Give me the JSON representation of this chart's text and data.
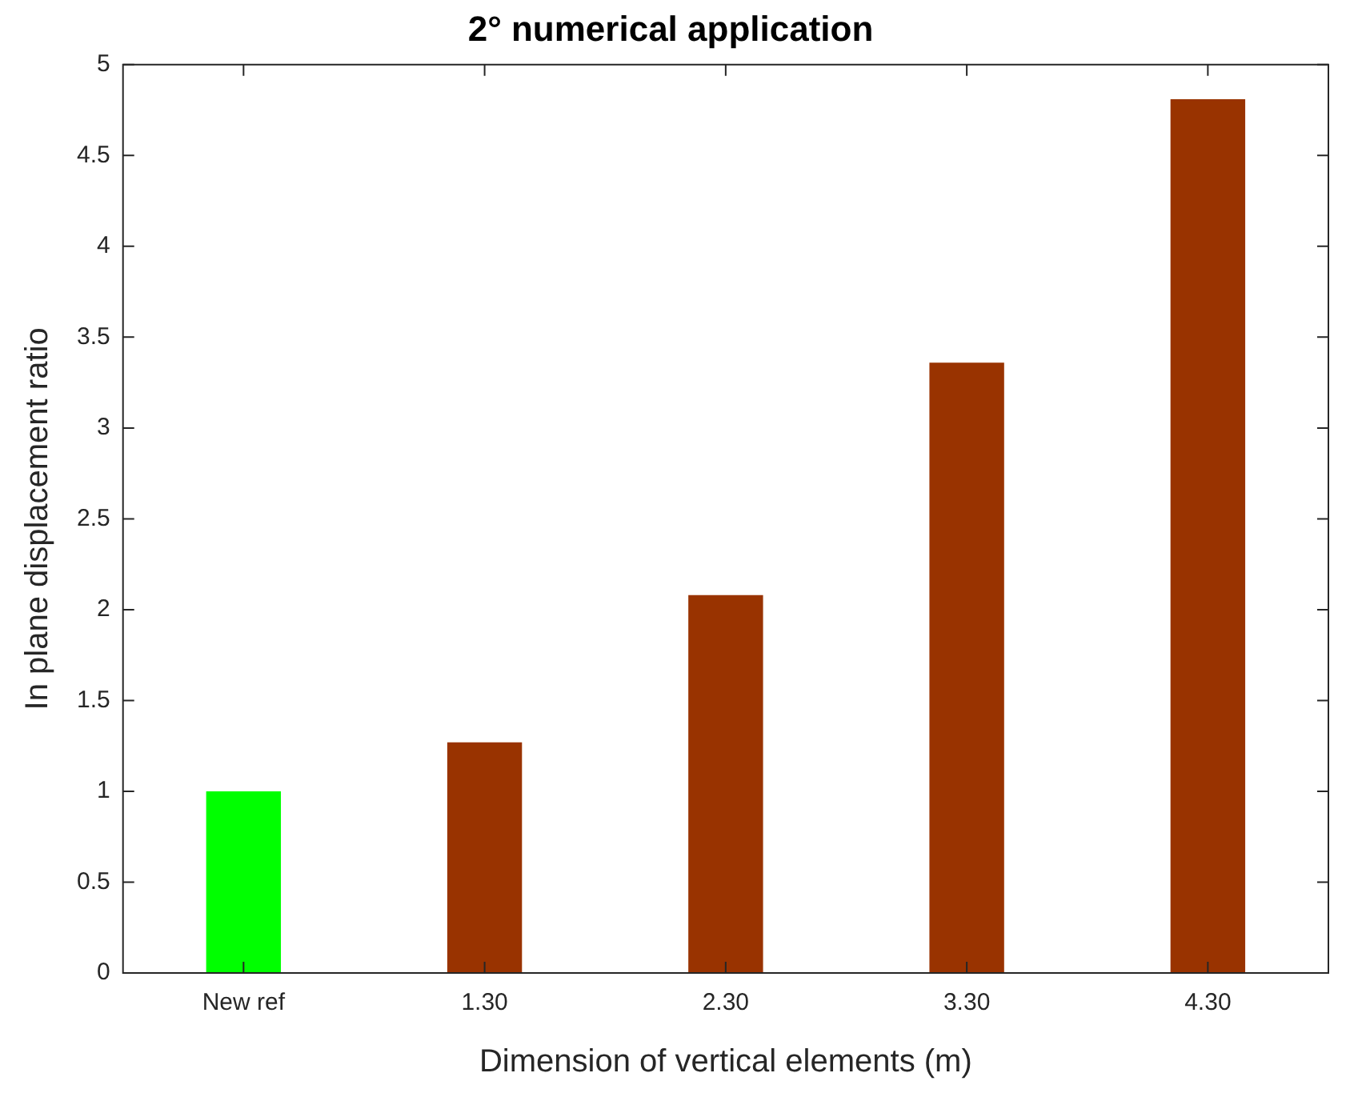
{
  "chart_data": {
    "type": "bar",
    "title": "2° numerical application",
    "xlabel": "Dimension of vertical elements (m)",
    "ylabel": "In plane displacement ratio",
    "categories": [
      "New ref",
      "1.30",
      "2.30",
      "3.30",
      "4.30"
    ],
    "values": [
      1.0,
      1.27,
      2.08,
      3.36,
      4.81
    ],
    "colors": [
      "#00ff00",
      "#993300",
      "#993300",
      "#993300",
      "#993300"
    ],
    "ylim": [
      0,
      5
    ],
    "yticks": [
      0,
      0.5,
      1,
      1.5,
      2,
      2.5,
      3,
      3.5,
      4,
      4.5,
      5
    ],
    "grid": false,
    "legend": false
  }
}
